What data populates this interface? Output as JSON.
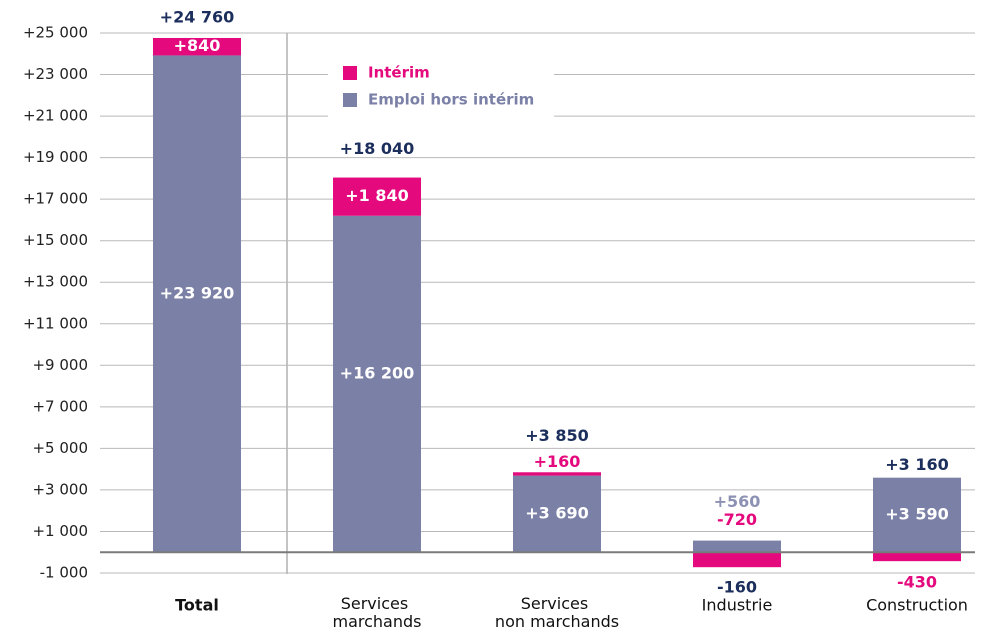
{
  "chart_data": {
    "type": "stacked-bar",
    "categories": [
      "Total",
      "Services marchands",
      "Services non marchands",
      "Industrie",
      "Construction"
    ],
    "series": [
      {
        "name": "Intérim",
        "color": "#e4097d",
        "values": [
          840,
          1840,
          160,
          -720,
          -430
        ],
        "value_labels": [
          "+840",
          "+1 840",
          "+160",
          "-720",
          "-430"
        ]
      },
      {
        "name": "Emploi hors intérim",
        "color": "#7b80a6",
        "values": [
          23920,
          16200,
          3690,
          560,
          3590
        ],
        "value_labels": [
          "+23 920",
          "+16 200",
          "+3 690",
          "+560",
          "+3 590"
        ]
      }
    ],
    "totals": {
      "color": "#1b2e5c",
      "values": [
        24760,
        18040,
        3850,
        -160,
        3160
      ],
      "value_labels": [
        "+24 760",
        "+18 040",
        "+3 850",
        "-160",
        "+3 160"
      ]
    },
    "ylim": [
      -1000,
      25000
    ],
    "yticks": [
      {
        "value": -1000,
        "label": "-1 000"
      },
      {
        "value": 1000,
        "label": "+1 000"
      },
      {
        "value": 3000,
        "label": "+3 000"
      },
      {
        "value": 5000,
        "label": "+5 000"
      },
      {
        "value": 7000,
        "label": "+7 000"
      },
      {
        "value": 9000,
        "label": "+9 000"
      },
      {
        "value": 11000,
        "label": "+11 000"
      },
      {
        "value": 13000,
        "label": "+13 000"
      },
      {
        "value": 15000,
        "label": "+15 000"
      },
      {
        "value": 17000,
        "label": "+17 000"
      },
      {
        "value": 19000,
        "label": "+19 000"
      },
      {
        "value": 21000,
        "label": "+21 000"
      },
      {
        "value": 23000,
        "label": "+23 000"
      },
      {
        "value": 25000,
        "label": "+25 000"
      }
    ],
    "grid": true
  }
}
